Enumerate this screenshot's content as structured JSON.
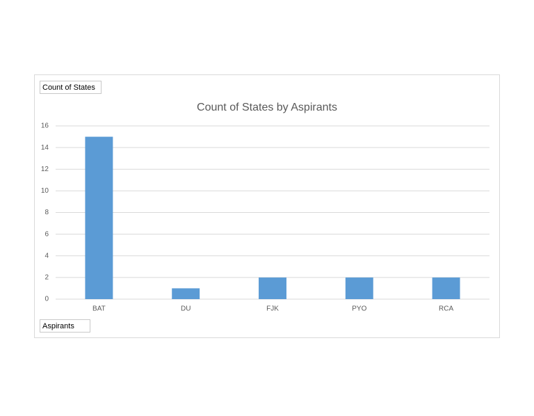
{
  "chart_data": {
    "type": "bar",
    "title": "Count of States by Aspirants",
    "value_field_button": "Count of States",
    "axis_field_button": "Aspirants",
    "categories": [
      "BAT",
      "DU",
      "FJK",
      "PYO",
      "RCA"
    ],
    "values": [
      15,
      1,
      2,
      2,
      2
    ],
    "color": "#5b9bd5",
    "ylim": [
      0,
      16
    ],
    "yticks": [
      0,
      2,
      4,
      6,
      8,
      10,
      12,
      14,
      16
    ],
    "grid": true
  }
}
